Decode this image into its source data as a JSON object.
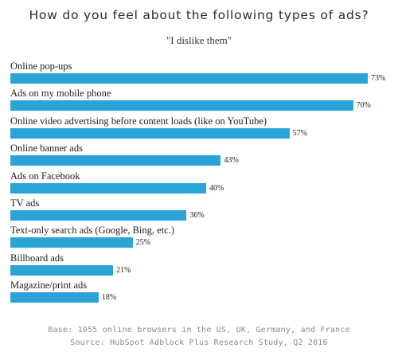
{
  "chart_data": {
    "type": "bar",
    "orientation": "horizontal",
    "title": "How do you feel about the following types of ads?",
    "subtitle": "\"I dislike them\"",
    "categories": [
      "Online pop-ups",
      "Ads on my mobile phone",
      "Online video advertising before content loads (like on YouTube)",
      "Online banner ads",
      "Ads on Facebook",
      "TV ads",
      "Text-only search ads (Google, Bing, etc.)",
      "Billboard ads",
      "Magazine/print ads"
    ],
    "values": [
      73,
      70,
      57,
      43,
      40,
      36,
      25,
      21,
      18
    ],
    "value_labels": [
      "73%",
      "70%",
      "57%",
      "43%",
      "40%",
      "36%",
      "25%",
      "21%",
      "18%"
    ],
    "xlim": [
      0,
      100
    ],
    "grid": false,
    "legend": "none",
    "bar_color": "#2aa3d8"
  },
  "notes": {
    "base": "Base: 1055 online browsers in the US, UK, Germany, and France",
    "source": "Source: HubSpot Adblock Plus Research Study, Q2 2016"
  }
}
